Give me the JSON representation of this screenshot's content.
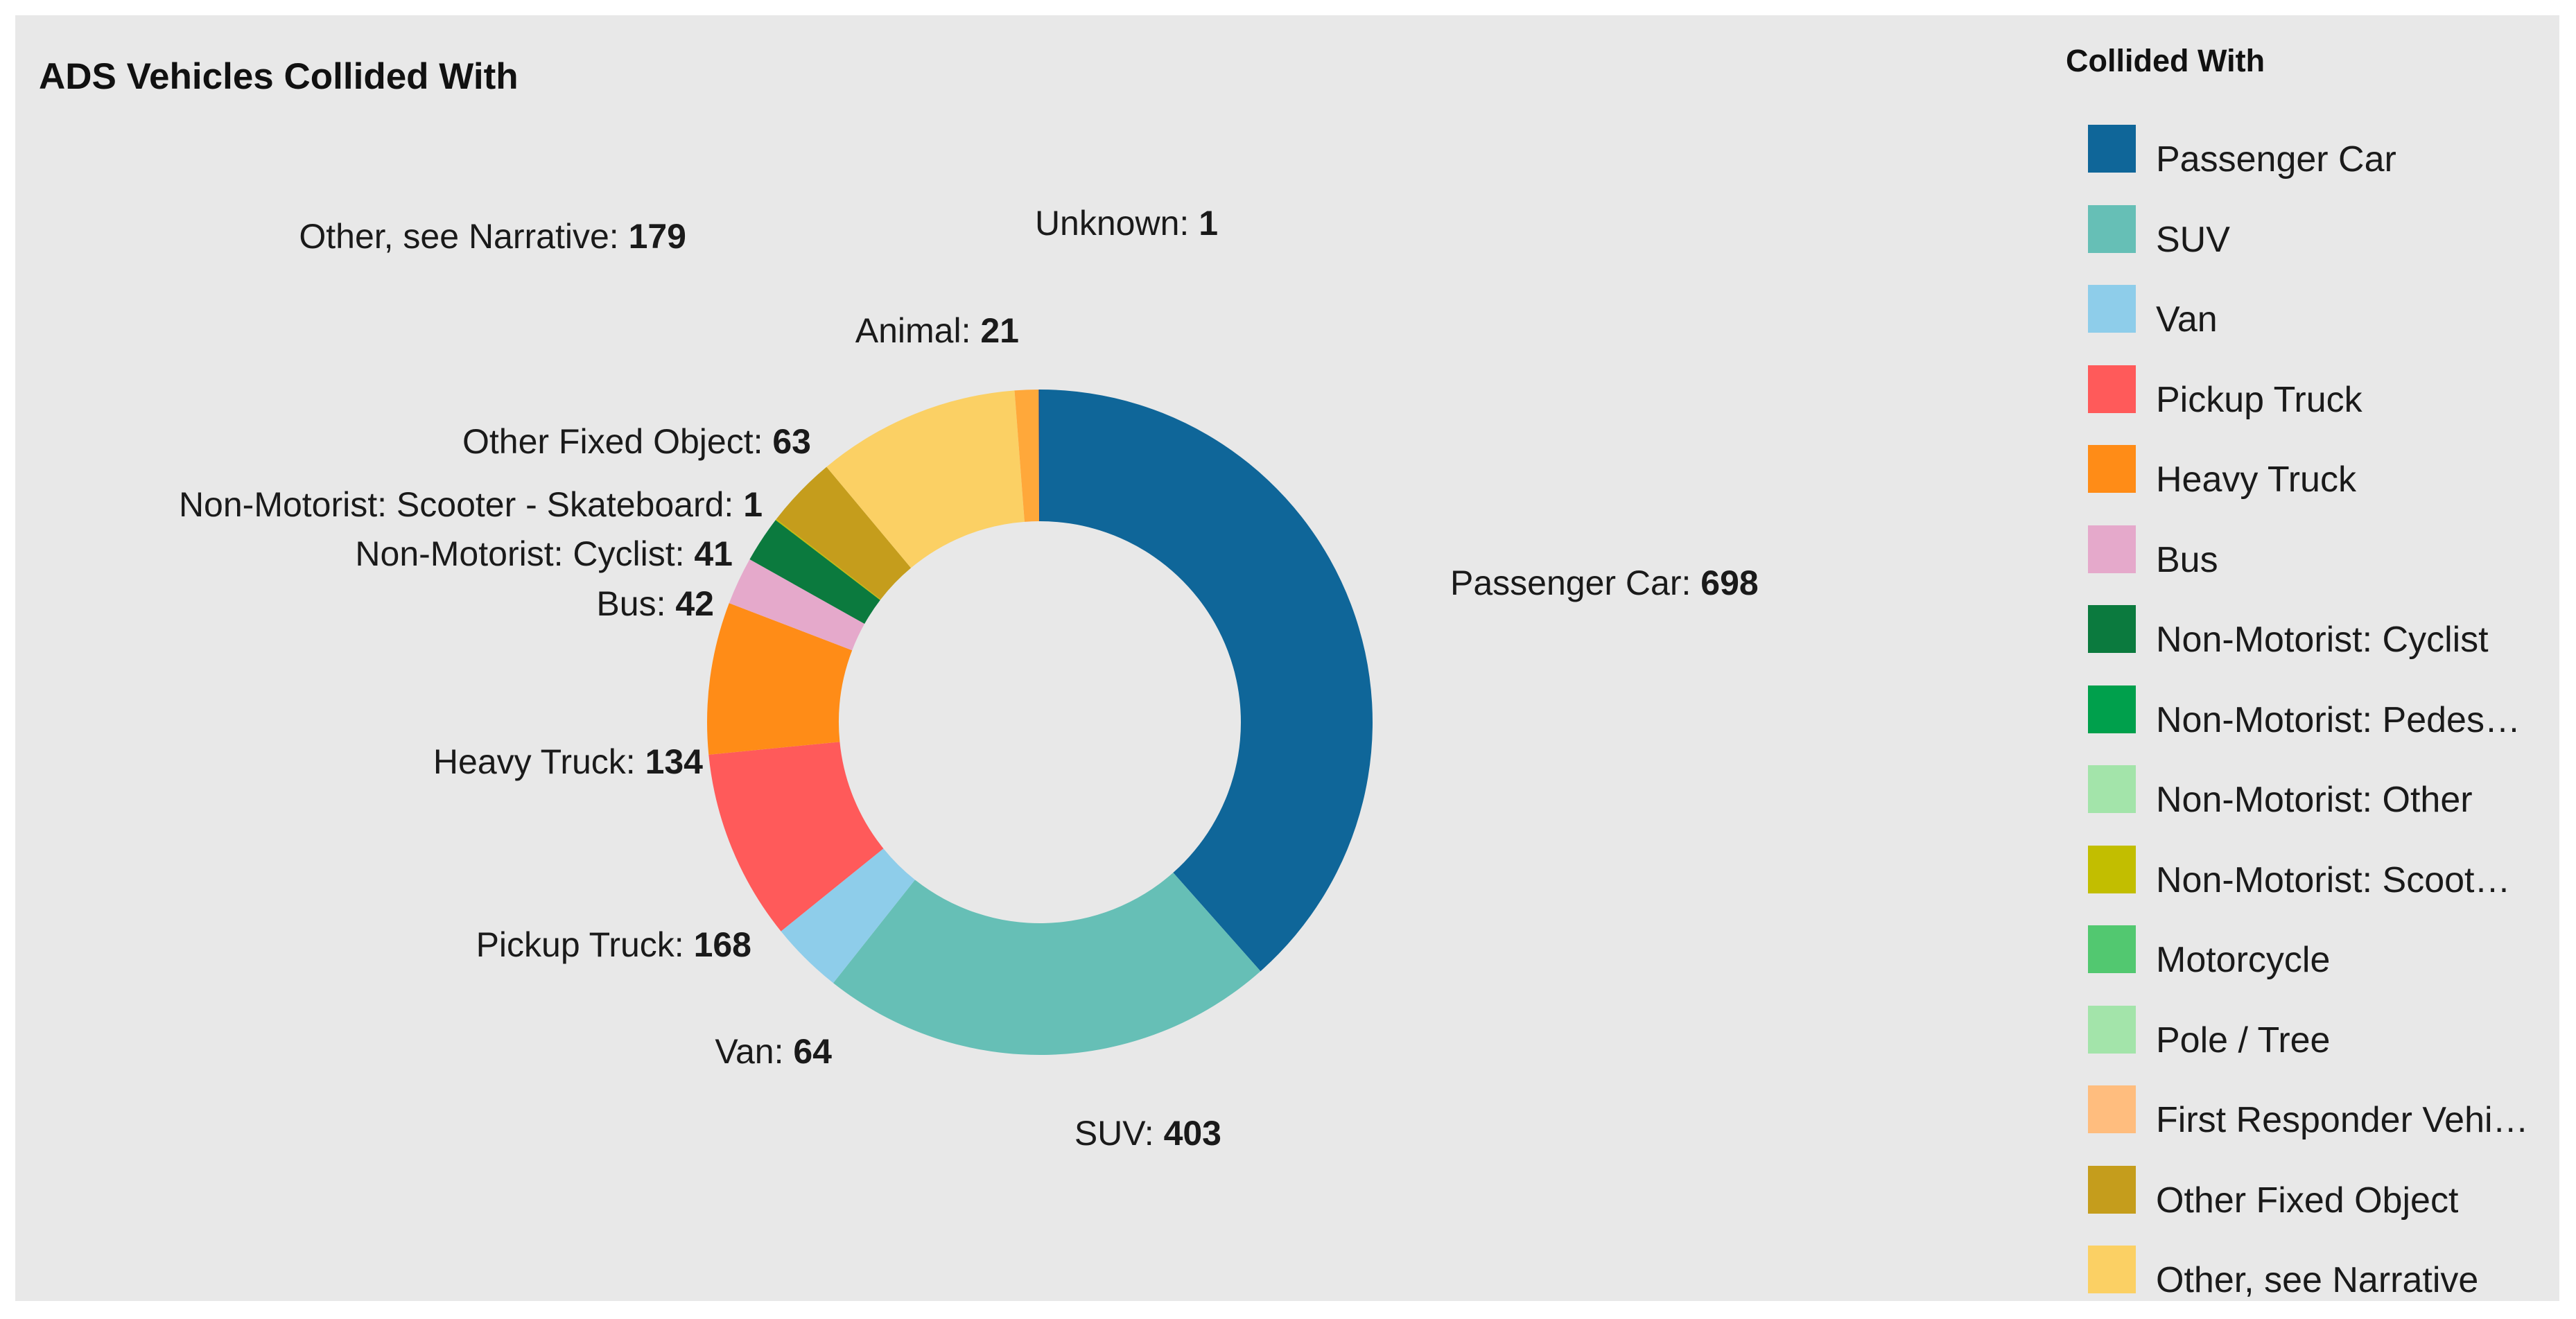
{
  "chart_data": {
    "type": "pie",
    "title": "ADS Vehicles Collided With",
    "legend_title": "Collided With",
    "legend_placement": "right",
    "donut": true,
    "slices": [
      {
        "label": "Passenger Car",
        "value": 698,
        "color": "#0f6699"
      },
      {
        "label": "SUV",
        "value": 403,
        "color": "#66bfb6"
      },
      {
        "label": "Van",
        "value": 64,
        "color": "#8ecdea"
      },
      {
        "label": "Pickup Truck",
        "value": 168,
        "color": "#ff5a5a"
      },
      {
        "label": "Heavy Truck",
        "value": 134,
        "color": "#ff8c17"
      },
      {
        "label": "Bus",
        "value": 42,
        "color": "#e5a9cb"
      },
      {
        "label": "Non-Motorist: Cyclist",
        "value": 41,
        "color": "#0b7a3e"
      },
      {
        "label": "Non-Motorist: Scooter - Skateboard",
        "value": 1,
        "color": "#c2be00"
      },
      {
        "label": "Other Fixed Object",
        "value": 63,
        "color": "#c59d1c"
      },
      {
        "label": "Other, see Narrative",
        "value": 179,
        "color": "#fbd064"
      },
      {
        "label": "Animal",
        "value": 21,
        "color": "#ffa83a"
      },
      {
        "label": "Unknown",
        "value": 1,
        "color": "#1b4f8a"
      }
    ],
    "legend": [
      {
        "label": "Passenger Car",
        "color": "#0f6699"
      },
      {
        "label": "SUV",
        "color": "#66bfb6"
      },
      {
        "label": "Van",
        "color": "#8ecdea"
      },
      {
        "label": "Pickup Truck",
        "color": "#ff5a5a"
      },
      {
        "label": "Heavy Truck",
        "color": "#ff8c17"
      },
      {
        "label": "Bus",
        "color": "#e5a9cb"
      },
      {
        "label": "Non-Motorist: Cyclist",
        "color": "#0b7a3e"
      },
      {
        "label": "Non-Motorist: Pedestri...",
        "color": "#00a04c"
      },
      {
        "label": "Non-Motorist: Other",
        "color": "#a3e4aa"
      },
      {
        "label": "Non-Motorist: Scooter...",
        "color": "#c2be00"
      },
      {
        "label": "Motorcycle",
        "color": "#52c870"
      },
      {
        "label": "Pole / Tree",
        "color": "#a3e4aa"
      },
      {
        "label": "First Responder Vehicle",
        "color": "#ffbd7e"
      },
      {
        "label": "Other Fixed Object",
        "color": "#c59d1c"
      },
      {
        "label": "Other, see Narrative",
        "color": "#fbd064"
      }
    ]
  }
}
